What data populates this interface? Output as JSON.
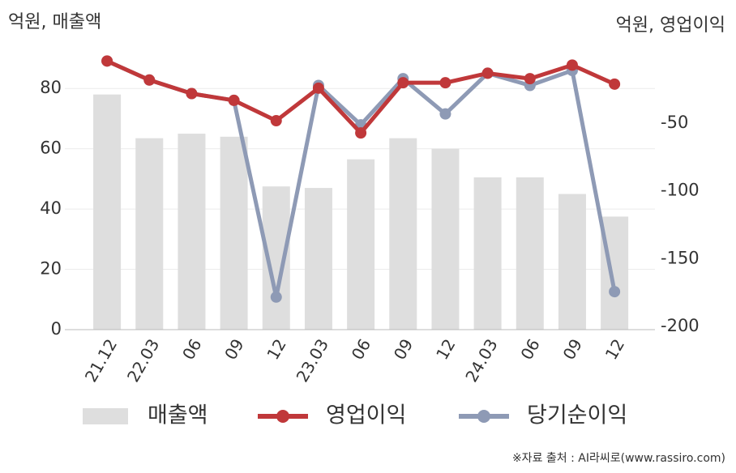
{
  "chart_data": {
    "type": "bar-line",
    "y_label": "억원, 매출액",
    "y2_label": "억원, 영업이익",
    "source": "※자료 출처 : AI라씨로(www.rassiro.com)",
    "categories": [
      "21.12",
      "22.03",
      "06",
      "09",
      "12",
      "23.03",
      "06",
      "09",
      "12",
      "24.03",
      "06",
      "09",
      "12"
    ],
    "series": [
      {
        "name": "매출액",
        "type": "bar",
        "color": "#dedede",
        "values": [
          78,
          63.5,
          65,
          64,
          47.5,
          47,
          56.5,
          63.5,
          60,
          50.5,
          50.5,
          45,
          37.5
        ]
      },
      {
        "name": "영업이익",
        "type": "line",
        "axis": "y2",
        "color": "#c0383a",
        "values": [
          -2,
          -16,
          -26,
          -31,
          -46,
          -22,
          -55,
          -18,
          -18,
          -11,
          -15,
          -5,
          -19
        ]
      },
      {
        "name": "당기순이익",
        "type": "line",
        "axis": "y2",
        "color": "#8e9ab5",
        "values": [
          -2,
          -16,
          -26,
          -31,
          -176,
          -20,
          -49,
          -15,
          -41,
          -11,
          -20,
          -9,
          -172
        ]
      }
    ],
    "ylim": [
      0,
      90
    ],
    "yticks": [
      0,
      20,
      40,
      60,
      80
    ],
    "y2lim": [
      -200,
      0
    ],
    "y2ticks": [
      -200,
      -150,
      -100,
      -50
    ],
    "grid": true
  }
}
